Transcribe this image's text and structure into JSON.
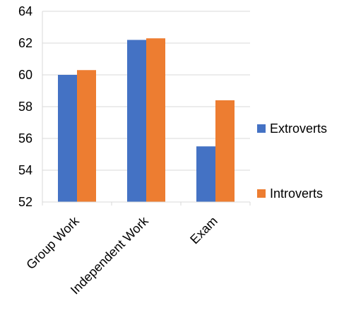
{
  "chart_data": {
    "type": "bar",
    "categories": [
      "Group Work",
      "Independent Work",
      "Exam"
    ],
    "series": [
      {
        "name": "Extroverts",
        "values": [
          60.0,
          62.2,
          55.5
        ],
        "color": "#4472C4"
      },
      {
        "name": "Introverts",
        "values": [
          60.3,
          62.3,
          58.4
        ],
        "color": "#ED7D31"
      }
    ],
    "title": "",
    "xlabel": "",
    "ylabel": "",
    "ylim": [
      52,
      64
    ],
    "yticks": [
      52,
      54,
      56,
      58,
      60,
      62,
      64
    ],
    "ytick_labels": [
      "52",
      "54",
      "56",
      "58",
      "60",
      "62",
      "64"
    ],
    "grid": "horizontal",
    "legend_position": "right",
    "gridline_color": "#D9D9D9",
    "axis_color": "#D9D9D9"
  }
}
